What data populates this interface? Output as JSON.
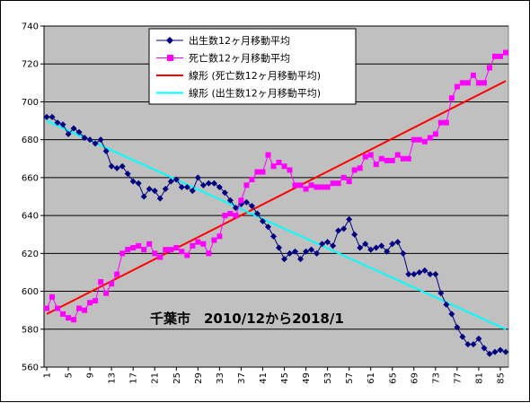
{
  "colors": {
    "plot_bg": "#c0c0c0",
    "births": "#000080",
    "deaths": "#ff00ff",
    "deaths_trend": "#ff0000",
    "births_trend": "#00ffff",
    "grid": "#000000"
  },
  "chart_data": {
    "type": "line",
    "title": "",
    "xlabel": "",
    "ylabel": "",
    "ylim": [
      560,
      740
    ],
    "yticks": [
      560,
      580,
      600,
      620,
      640,
      660,
      680,
      700,
      720,
      740
    ],
    "xlim": [
      1,
      86
    ],
    "xticks": [
      1,
      5,
      9,
      13,
      17,
      21,
      25,
      29,
      33,
      37,
      41,
      45,
      49,
      53,
      57,
      61,
      65,
      69,
      73,
      77,
      81,
      85
    ],
    "grid": "horizontal",
    "legend_position": "top-center",
    "annotation": "千葉市　2010/12から2018/1",
    "series": [
      {
        "name": "出生数12ヶ月移動平均",
        "color_key": "births",
        "marker": "diamond",
        "values": [
          692,
          692,
          689,
          688,
          683,
          686,
          684,
          681,
          680,
          678,
          680,
          674,
          666,
          665,
          666,
          662,
          658,
          657,
          650,
          654,
          653,
          649,
          654,
          658,
          659,
          655,
          655,
          653,
          660,
          656,
          657,
          657,
          655,
          652,
          648,
          644,
          646,
          647,
          645,
          641,
          637,
          634,
          629,
          623,
          617,
          620,
          621,
          617,
          621,
          622,
          620,
          625,
          626,
          624,
          632,
          633,
          638,
          630,
          623,
          625,
          622,
          623,
          624,
          621,
          625,
          626,
          620,
          609,
          609,
          610,
          611,
          609,
          609,
          599,
          593,
          588,
          581,
          576,
          572,
          572,
          575,
          570,
          567,
          568,
          569,
          568
        ]
      },
      {
        "name": "死亡数12ヶ月移動平均",
        "color_key": "deaths",
        "marker": "square",
        "values": [
          591,
          597,
          591,
          588,
          586,
          585,
          591,
          590,
          594,
          595,
          605,
          599,
          604,
          609,
          620,
          622,
          623,
          624,
          622,
          625,
          620,
          618,
          622,
          622,
          623,
          621,
          619,
          624,
          626,
          625,
          620,
          627,
          629,
          640,
          641,
          640,
          648,
          656,
          659,
          663,
          663,
          672,
          666,
          668,
          666,
          664,
          656,
          656,
          654,
          656,
          655,
          655,
          655,
          657,
          657,
          660,
          658,
          664,
          665,
          671,
          672,
          667,
          670,
          669,
          669,
          672,
          670,
          670,
          680,
          680,
          679,
          681,
          683,
          689,
          689,
          702,
          708,
          710,
          710,
          714,
          710,
          710,
          718,
          724,
          724,
          726
        ]
      },
      {
        "name": "線形 (死亡数12ヶ月移動平均)",
        "color_key": "deaths_trend",
        "trend": true,
        "values": [
          588,
          711
        ]
      },
      {
        "name": "線形 (出生数12ヶ月移動平均)",
        "color_key": "births_trend",
        "trend": true,
        "values": [
          690,
          580
        ]
      }
    ]
  }
}
